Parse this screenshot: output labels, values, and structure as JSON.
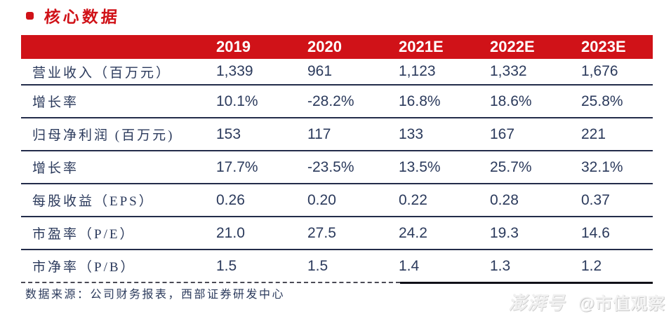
{
  "title": {
    "bullet_icon": "red-square-bullet",
    "text": "核心数据"
  },
  "table": {
    "corner_label": "",
    "columns": [
      "2019",
      "2020",
      "2021E",
      "2022E",
      "2023E"
    ],
    "rows": [
      {
        "label": "营业收入（百万元）",
        "values": [
          "1,339",
          "961",
          "1,123",
          "1,332",
          "1,676"
        ]
      },
      {
        "label": "增长率",
        "values": [
          "10.1%",
          "-28.2%",
          "16.8%",
          "18.6%",
          "25.8%"
        ]
      },
      {
        "label": "归母净利润 (百万元)",
        "values": [
          "153",
          "117",
          "133",
          "167",
          "221"
        ]
      },
      {
        "label": "增长率",
        "values": [
          "17.7%",
          "-23.5%",
          "13.5%",
          "25.7%",
          "32.1%"
        ]
      },
      {
        "label": "每股收益（EPS）",
        "values": [
          "0.26",
          "0.20",
          "0.22",
          "0.28",
          "0.37"
        ]
      },
      {
        "label": "市盈率（P/E）",
        "values": [
          "21.0",
          "27.5",
          "24.2",
          "19.3",
          "14.6"
        ]
      },
      {
        "label": "市净率（P/B）",
        "values": [
          "1.5",
          "1.5",
          "1.4",
          "1.3",
          "1.2"
        ]
      }
    ]
  },
  "footer": {
    "source": "数据来源：公司财务报表，西部证券研发中心"
  },
  "watermark": {
    "brand": "澎湃号",
    "account": "@市值观察"
  },
  "colors": {
    "accent_red": "#d01218",
    "text_navy": "#2b3a5c",
    "header_text": "#ffffff"
  }
}
